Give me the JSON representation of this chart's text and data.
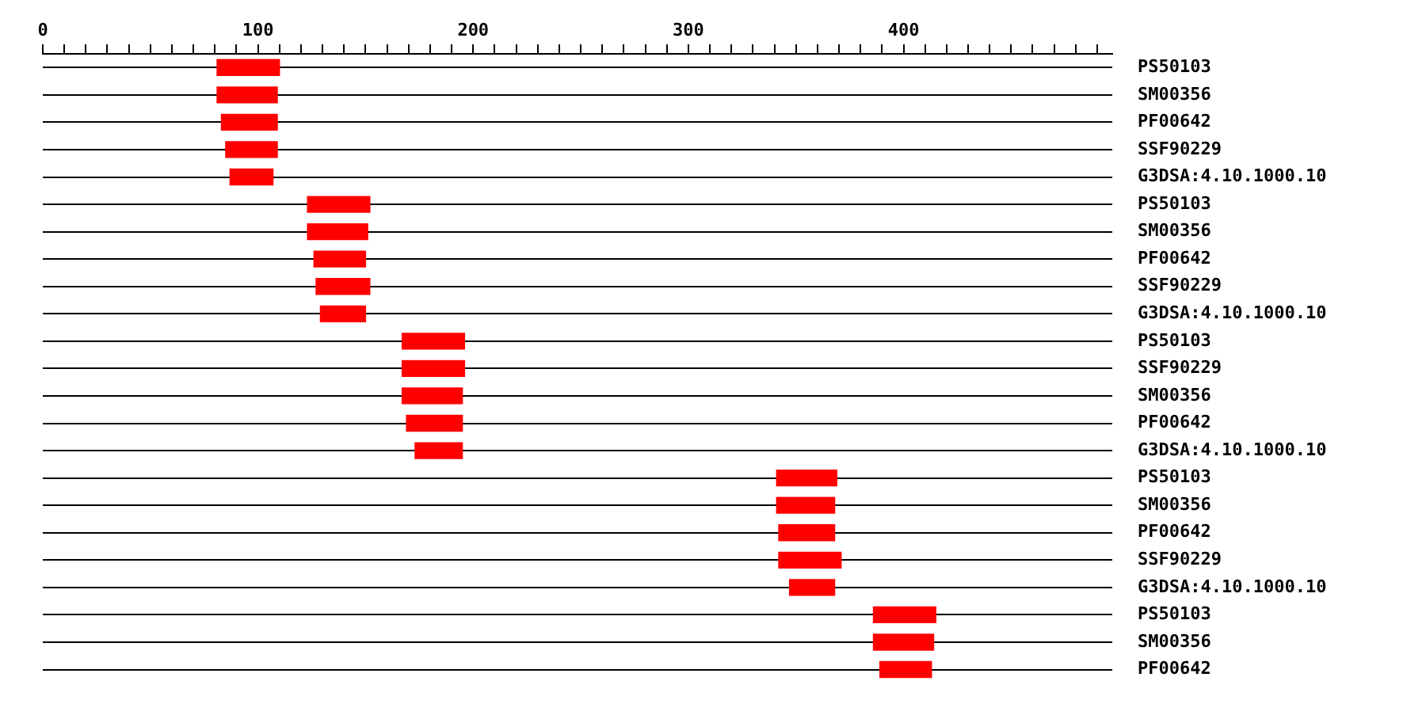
{
  "chart_data": {
    "type": "bar",
    "orientation": "horizontal",
    "color": "#ff0000",
    "grid": "y",
    "legend": false,
    "categories": [
      "PS50103",
      "SM00356",
      "PF00642",
      "SSF90229",
      "G3DSA:4.10.1000.10",
      "PS50103",
      "SM00356",
      "PF00642",
      "SSF90229",
      "G3DSA:4.10.1000.10",
      "PS50103",
      "SSF90229",
      "SM00356",
      "PF00642",
      "G3DSA:4.10.1000.10",
      "PS50103",
      "SM00356",
      "PF00642",
      "SSF90229",
      "G3DSA:4.10.1000.10",
      "PS50103",
      "SM00356",
      "PF00642"
    ],
    "base": [
      81,
      81,
      83,
      85,
      87,
      123,
      123,
      126,
      127,
      129,
      167,
      167,
      167,
      169,
      173,
      341,
      341,
      342,
      342,
      347,
      386,
      386,
      389
    ],
    "values": [
      29,
      28,
      26,
      24,
      20,
      29,
      28,
      24,
      25,
      21,
      29,
      29,
      28,
      26,
      22,
      28,
      27,
      26,
      29,
      21,
      29,
      28,
      24
    ],
    "xlim": [
      0,
      497
    ],
    "xticks": [
      0,
      {
        "value": 10,
        "label": null
      },
      {
        "value": 20,
        "label": null
      },
      {
        "value": 30,
        "label": null
      },
      {
        "value": 40,
        "label": null
      },
      {
        "value": 50,
        "label": null
      },
      {
        "value": 60,
        "label": null
      },
      {
        "value": 70,
        "label": null
      },
      {
        "value": 80,
        "label": null
      },
      {
        "value": 90,
        "label": null
      },
      100,
      {
        "value": 110,
        "label": null
      },
      {
        "value": 120,
        "label": null
      },
      {
        "value": 130,
        "label": null
      },
      {
        "value": 140,
        "label": null
      },
      {
        "value": 150,
        "label": null
      },
      {
        "value": 160,
        "label": null
      },
      {
        "value": 170,
        "label": null
      },
      {
        "value": 180,
        "label": null
      },
      {
        "value": 190,
        "label": null
      },
      200,
      {
        "value": 210,
        "label": null
      },
      {
        "value": 220,
        "label": null
      },
      {
        "value": 230,
        "label": null
      },
      {
        "value": 240,
        "label": null
      },
      {
        "value": 250,
        "label": null
      },
      {
        "value": 260,
        "label": null
      },
      {
        "value": 270,
        "label": null
      },
      {
        "value": 280,
        "label": null
      },
      {
        "value": 290,
        "label": null
      },
      300,
      {
        "value": 310,
        "label": null
      },
      {
        "value": 320,
        "label": null
      },
      {
        "value": 330,
        "label": null
      },
      {
        "value": 340,
        "label": null
      },
      {
        "value": 350,
        "label": null
      },
      {
        "value": 360,
        "label": null
      },
      {
        "value": 370,
        "label": null
      },
      {
        "value": 380,
        "label": null
      },
      {
        "value": 390,
        "label": null
      },
      400,
      {
        "value": 410,
        "label": null
      },
      {
        "value": 420,
        "label": null
      },
      {
        "value": 430,
        "label": null
      },
      {
        "value": 440,
        "label": null
      },
      {
        "value": 450,
        "label": null
      },
      {
        "value": 460,
        "label": null
      },
      {
        "value": 470,
        "label": null
      },
      {
        "value": 480,
        "label": null
      },
      {
        "value": 490,
        "label": null
      }
    ]
  }
}
